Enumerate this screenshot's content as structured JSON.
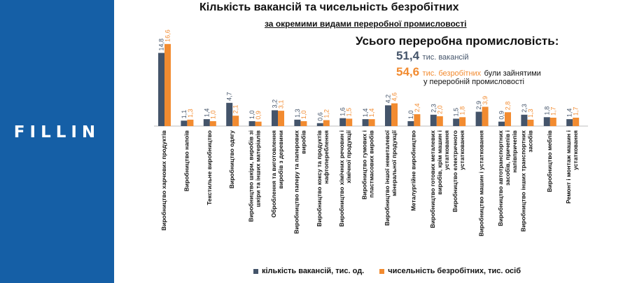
{
  "brand": {
    "logo_text": "FILLIN",
    "color": "#155fa6"
  },
  "title": "Кількість вакансій та чисельність безробітних",
  "subtitle": "за окремими видами переробної промисловості",
  "summary": {
    "heading": "Усього переробна промисловість:",
    "vacancies_value": "51,4",
    "vacancies_unit": "тис. вакансій",
    "unemployed_value": "54,6",
    "unemployed_unit": "тис. безробітних",
    "unemployed_rest": "були зайнятими",
    "unemployed_rest2": "у переробній промисловості"
  },
  "chart_data": {
    "type": "bar",
    "categories": [
      "Виробництво харчових продуктів",
      "Виробництво напоїв",
      "Текстильне виробництво",
      "Виробництво одягу",
      "Виробництво шкіри, виробів зі шкіри та інших матеріалів",
      "Оброблення та виготовлення виробів з деревини",
      "Виробництво паперу та паперових виробів",
      "Виробництво коксу та продуктів нафтопереблення",
      "Виробництво хімічних речовин і хімічної продукції",
      "Виробництво гумових і пластмасових виробів",
      "Виробництво іншої неметалевої мінеральної продукції",
      "Металургійне виробництво",
      "Виробництво готових металевих виробів, крім машин і устатковання",
      "Виробництво електричного устатковання",
      "Виробництво машин і устатковання",
      "Виробництво автотранспортних засобів, причепів і напівпричепів",
      "Виробництво інших транспортних засобів",
      "Виробництво меблів",
      "Ремонт і монтаж машин і устатковання"
    ],
    "series": [
      {
        "name": "кількість вакансій, тис. од.",
        "color": "#44546a",
        "values": [
          14.8,
          1.1,
          1.4,
          4.7,
          1.0,
          3.2,
          1.3,
          0.6,
          1.6,
          1.4,
          4.2,
          1.0,
          2.3,
          1.5,
          2.9,
          0.9,
          2.3,
          1.8,
          1.4
        ],
        "labels": [
          "14,8",
          "1,1",
          "1,4",
          "4,7",
          "1,0",
          "3,2",
          "1,3",
          "0,6",
          "1,6",
          "1,4",
          "4,2",
          "1,0",
          "2,3",
          "1,5",
          "2,9",
          "0,9",
          "2,3",
          "1,8",
          "1,4"
        ]
      },
      {
        "name": "чисельність безробітних, тис. осіб",
        "color": "#f28b30",
        "values": [
          16.6,
          1.3,
          1.0,
          2.1,
          0.9,
          3.1,
          1.0,
          1.2,
          1.5,
          1.4,
          4.6,
          2.4,
          2.0,
          1.8,
          3.9,
          2.8,
          1.3,
          1.7,
          1.7
        ],
        "labels": [
          "16,6",
          "1,3",
          "1,0",
          "2,1",
          "0,9",
          "3,1",
          "1,0",
          "1,2",
          "1,5",
          "1,4",
          "4,6",
          "2,4",
          "2,0",
          "1,8",
          "3,9",
          "2,8",
          "1,3",
          "1,7",
          "1,7"
        ]
      }
    ],
    "xlabel": "",
    "ylabel": "",
    "ylim": [
      0,
      17
    ],
    "grid": false,
    "legend_position": "bottom"
  }
}
